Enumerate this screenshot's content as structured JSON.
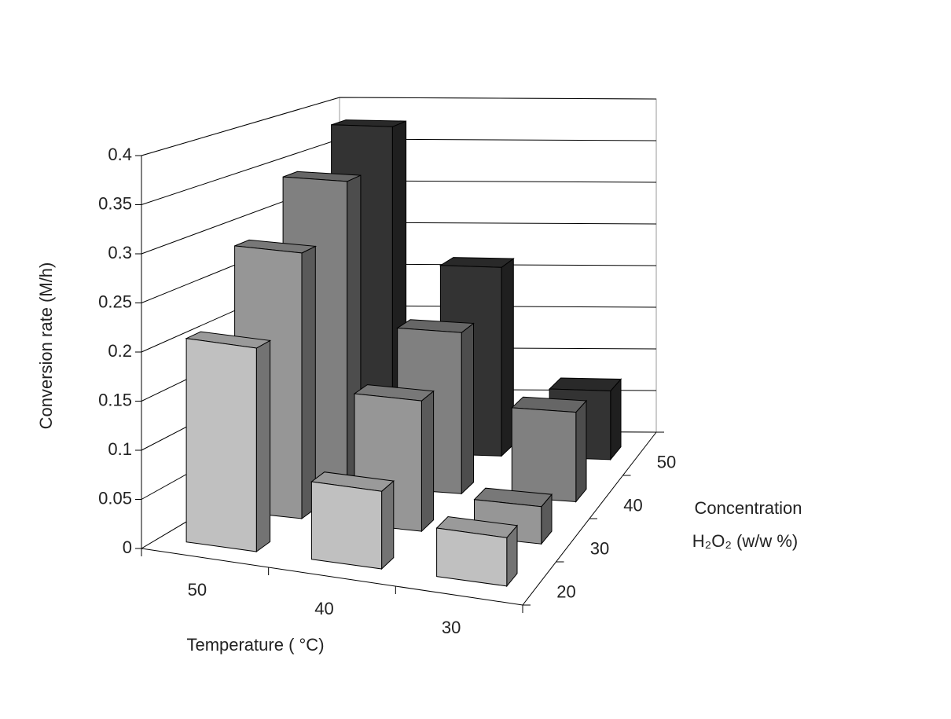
{
  "chart_data": {
    "type": "bar3d",
    "y_label": "Conversion rate (M/h)",
    "x_label": "Temperature ( °C)",
    "z_label": [
      "Concentration",
      "H₂O₂ (w/w %)"
    ],
    "categories": [
      "50",
      "40",
      "30"
    ],
    "series": [
      {
        "name": "20",
        "color": "#c0c0c0",
        "values": [
          0.21,
          0.08,
          0.05
        ]
      },
      {
        "name": "30",
        "color": "#969696",
        "values": [
          0.285,
          0.14,
          0.04
        ]
      },
      {
        "name": "40",
        "color": "#808080",
        "values": [
          0.34,
          0.18,
          0.1
        ]
      },
      {
        "name": "50",
        "color": "#333333",
        "values": [
          0.38,
          0.22,
          0.08
        ]
      }
    ],
    "ylim": [
      0,
      0.4
    ],
    "yticks": [
      0,
      0.05,
      0.1,
      0.15,
      0.2,
      0.25,
      0.3,
      0.35,
      0.4
    ],
    "grid": true
  }
}
